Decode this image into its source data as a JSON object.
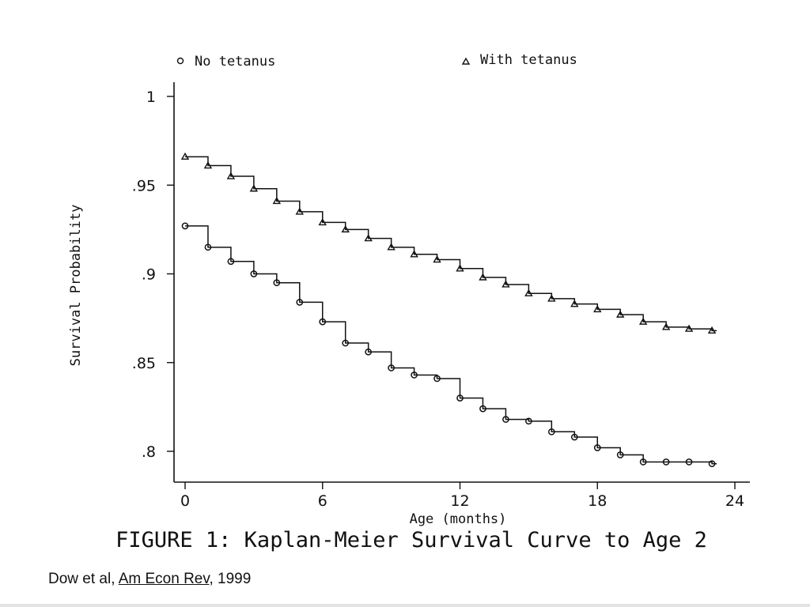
{
  "chart_data": {
    "type": "line",
    "step": true,
    "title": "",
    "caption": "FIGURE 1: Kaplan-Meier Survival Curve to Age 2",
    "xlabel": "Age (months)",
    "ylabel": "Survival Probability",
    "xlim": [
      0,
      24
    ],
    "ylim": [
      0.78,
      1.0
    ],
    "x_ticks": [
      0,
      6,
      12,
      18,
      24
    ],
    "x_tick_labels": [
      "0",
      "6",
      "12",
      "18",
      "24"
    ],
    "y_ticks": [
      0.8,
      0.85,
      0.9,
      0.95,
      1.0
    ],
    "y_tick_labels": [
      ".8",
      ".85",
      ".9",
      ".95",
      "1"
    ],
    "grid": false,
    "legend_position": "top",
    "x": [
      0,
      1,
      2,
      3,
      4,
      5,
      6,
      7,
      8,
      9,
      10,
      11,
      12,
      13,
      14,
      15,
      16,
      17,
      18,
      19,
      20,
      21,
      22,
      23
    ],
    "series": [
      {
        "name": "No tetanus",
        "marker": "circle",
        "values": [
          0.927,
          0.915,
          0.907,
          0.9,
          0.895,
          0.884,
          0.873,
          0.861,
          0.856,
          0.847,
          0.843,
          0.841,
          0.83,
          0.824,
          0.818,
          0.817,
          0.811,
          0.808,
          0.802,
          0.798,
          0.794,
          0.794,
          0.794,
          0.793
        ]
      },
      {
        "name": "With tetanus",
        "marker": "triangle",
        "values": [
          0.966,
          0.961,
          0.955,
          0.948,
          0.941,
          0.935,
          0.929,
          0.925,
          0.92,
          0.915,
          0.911,
          0.908,
          0.903,
          0.898,
          0.894,
          0.889,
          0.886,
          0.883,
          0.88,
          0.877,
          0.873,
          0.87,
          0.869,
          0.868
        ]
      }
    ]
  },
  "citation": {
    "prefix": "Dow et al, ",
    "journal": "Am Econ Rev",
    "suffix": ", 1999"
  }
}
